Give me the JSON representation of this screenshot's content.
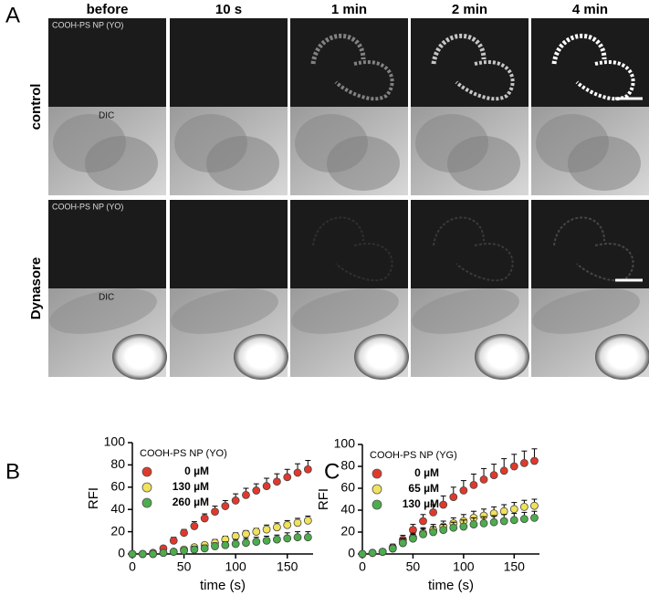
{
  "panel_labels": [
    "A",
    "B",
    "C"
  ],
  "figure_a": {
    "columns": [
      "before",
      "10 s",
      "1 min",
      "2 min",
      "4 min"
    ],
    "rows": [
      "control",
      "Dynasore"
    ],
    "fluor_label": "COOH-PS NP (YO)",
    "dic_label": "DIC"
  },
  "chart_data": [
    {
      "type": "line",
      "title": "COOH-PS NP (YO)",
      "xlabel": "time (s)",
      "ylabel": "RFI",
      "x": [
        0,
        10,
        20,
        30,
        40,
        50,
        60,
        70,
        80,
        90,
        100,
        110,
        120,
        130,
        140,
        150,
        160,
        170
      ],
      "xlim": [
        0,
        175
      ],
      "ylim": [
        0,
        100
      ],
      "xticks": [
        0,
        50,
        100,
        150
      ],
      "yticks": [
        0,
        20,
        40,
        60,
        80,
        100
      ],
      "series": [
        {
          "name": "0 µM",
          "color": "#e0392c",
          "values": [
            0,
            0,
            1,
            5,
            12,
            19,
            25,
            32,
            38,
            43,
            48,
            53,
            57,
            61,
            65,
            69,
            73,
            76
          ],
          "errors": [
            0,
            1,
            1,
            2,
            3,
            3,
            4,
            4,
            5,
            5,
            6,
            6,
            6,
            7,
            7,
            7,
            8,
            8
          ]
        },
        {
          "name": "130 µM",
          "color": "#f0e25a",
          "values": [
            0,
            0,
            0,
            1,
            2,
            4,
            6,
            8,
            10,
            13,
            16,
            18,
            20,
            22,
            24,
            26,
            28,
            30
          ],
          "errors": [
            0,
            0,
            1,
            1,
            1,
            2,
            2,
            2,
            3,
            3,
            3,
            3,
            3,
            4,
            4,
            4,
            4,
            4
          ]
        },
        {
          "name": "260 µM",
          "color": "#4cad4c",
          "values": [
            0,
            0,
            0,
            1,
            2,
            3,
            4,
            5,
            7,
            8,
            9,
            10,
            11,
            12,
            13,
            14,
            15,
            15
          ],
          "errors": [
            0,
            0,
            1,
            1,
            2,
            2,
            3,
            3,
            3,
            3,
            4,
            4,
            4,
            4,
            4,
            5,
            5,
            5
          ]
        }
      ]
    },
    {
      "type": "line",
      "title": "COOH-PS NP (YG)",
      "xlabel": "time (s)",
      "ylabel": "RFI",
      "x": [
        0,
        10,
        20,
        30,
        40,
        50,
        60,
        70,
        80,
        90,
        100,
        110,
        120,
        130,
        140,
        150,
        160,
        170
      ],
      "xlim": [
        0,
        175
      ],
      "ylim": [
        0,
        100
      ],
      "xticks": [
        0,
        50,
        100,
        150
      ],
      "yticks": [
        0,
        20,
        40,
        60,
        80,
        100
      ],
      "series": [
        {
          "name": "0 µM",
          "color": "#e0392c",
          "values": [
            0,
            1,
            2,
            6,
            13,
            22,
            30,
            38,
            45,
            52,
            58,
            63,
            68,
            72,
            76,
            80,
            83,
            85
          ],
          "errors": [
            0,
            1,
            2,
            3,
            4,
            5,
            6,
            7,
            8,
            9,
            9,
            10,
            10,
            10,
            11,
            11,
            11,
            11
          ]
        },
        {
          "name": "65 µM",
          "color": "#f0e25a",
          "values": [
            0,
            1,
            2,
            5,
            10,
            15,
            19,
            22,
            25,
            28,
            30,
            33,
            35,
            37,
            39,
            41,
            43,
            44
          ],
          "errors": [
            0,
            1,
            2,
            3,
            4,
            4,
            5,
            5,
            5,
            5,
            6,
            6,
            6,
            6,
            6,
            6,
            6,
            6
          ]
        },
        {
          "name": "130 µM",
          "color": "#4cad4c",
          "values": [
            0,
            1,
            2,
            5,
            10,
            14,
            18,
            20,
            22,
            24,
            25,
            27,
            28,
            29,
            30,
            31,
            32,
            33
          ],
          "errors": [
            0,
            1,
            2,
            3,
            4,
            4,
            5,
            5,
            5,
            5,
            6,
            6,
            6,
            6,
            6,
            6,
            6,
            6
          ]
        }
      ]
    }
  ]
}
